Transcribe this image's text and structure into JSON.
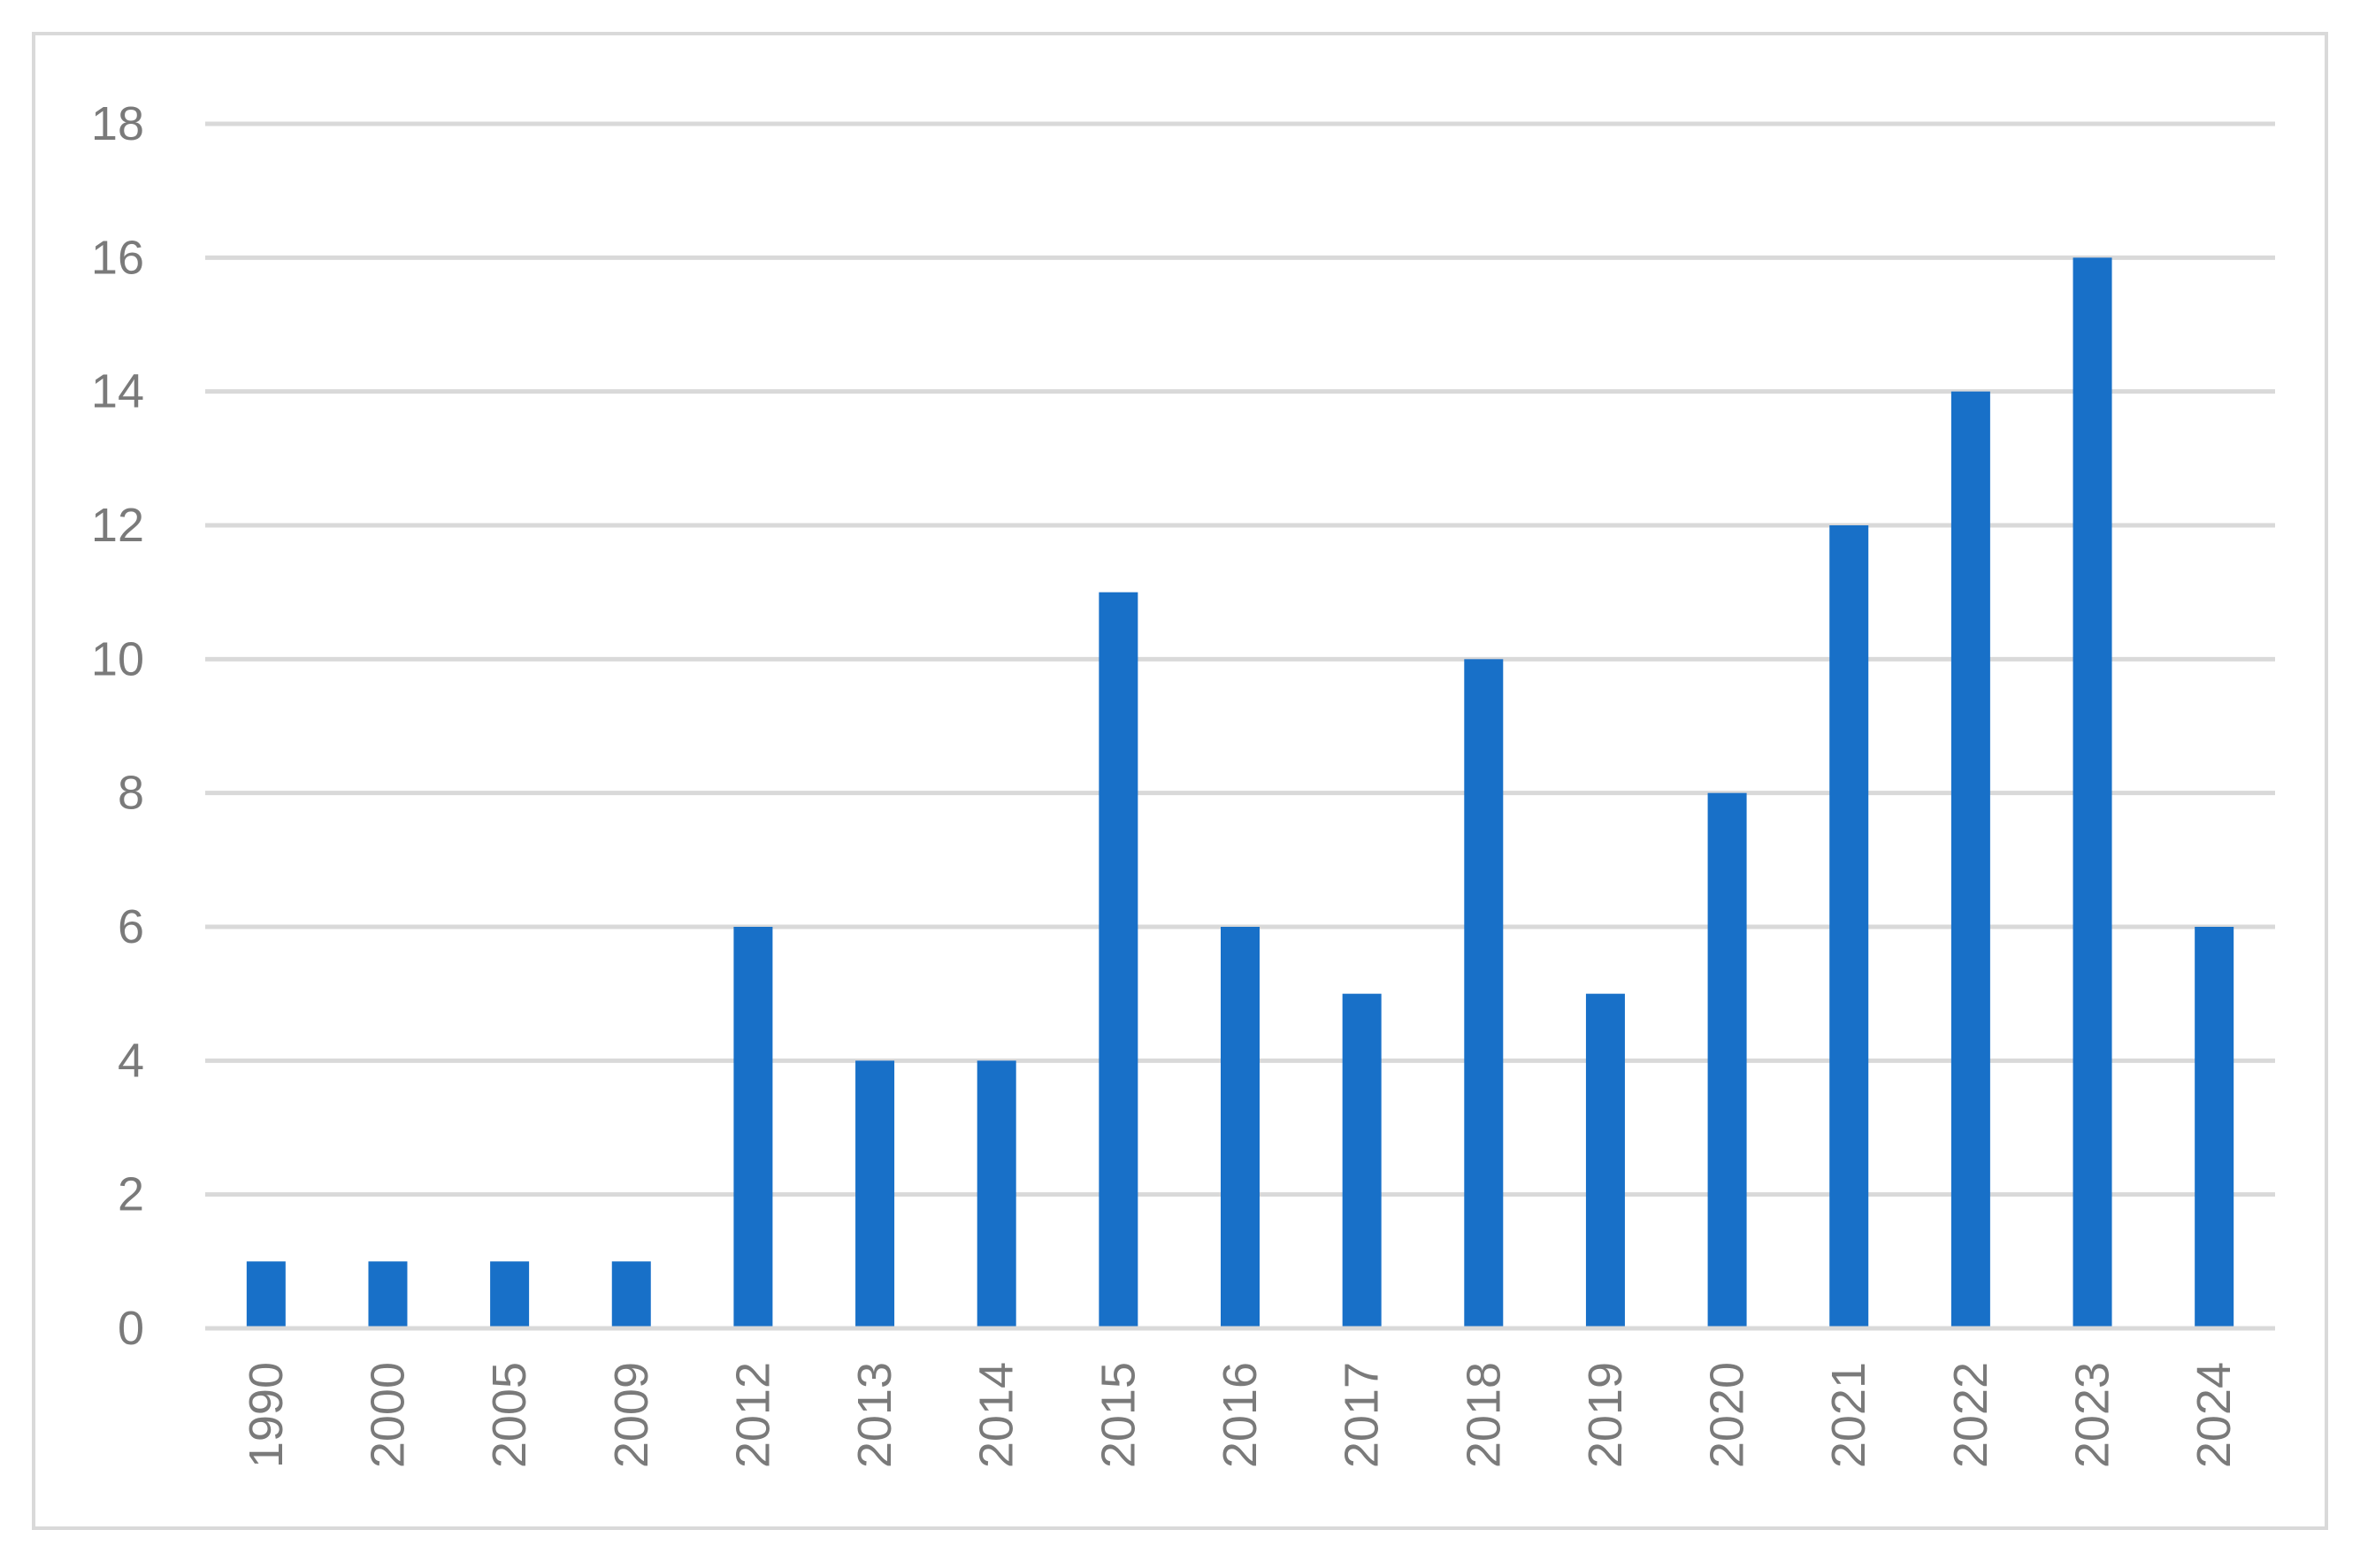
{
  "chart_data": {
    "type": "bar",
    "title": "",
    "xlabel": "",
    "ylabel": "",
    "categories": [
      "1990",
      "2000",
      "2005",
      "2009",
      "2012",
      "2013",
      "2014",
      "2015",
      "2016",
      "2017",
      "2018",
      "2019",
      "2020",
      "2021",
      "2022",
      "2023",
      "2024"
    ],
    "values": [
      1,
      1,
      1,
      1,
      6,
      4,
      4,
      11,
      6,
      5,
      10,
      5,
      8,
      12,
      14,
      16,
      6
    ],
    "ylim": [
      0,
      18
    ],
    "yticks": [
      "0",
      "2",
      "4",
      "6",
      "8",
      "10",
      "12",
      "14",
      "16",
      "18"
    ],
    "grid": true,
    "legend": "none",
    "colors": {
      "bar": "#1870c8",
      "grid": "#d9d9d9",
      "border": "#d9d9d9",
      "tick_text": "#7a7a7a",
      "background": "#ffffff"
    }
  }
}
